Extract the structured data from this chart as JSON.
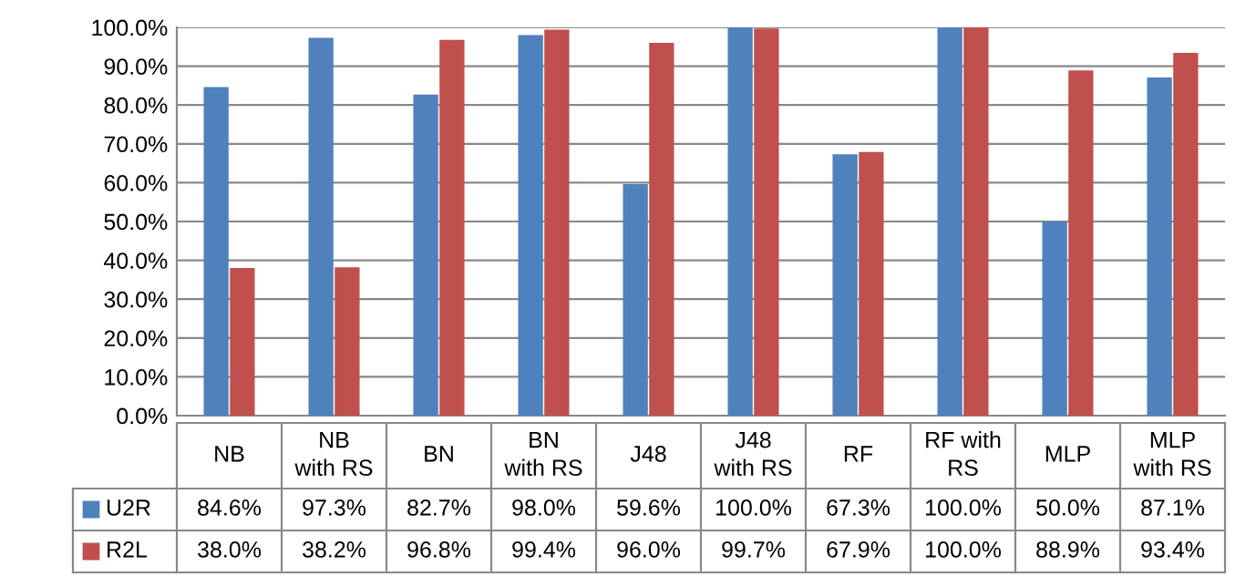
{
  "chart_data": {
    "type": "bar",
    "categories": [
      "NB",
      "NB\nwith RS",
      "BN",
      "BN\nwith RS",
      "J48",
      "J48\nwith RS",
      "RF",
      "RF with\nRS",
      "MLP",
      "MLP\nwith RS"
    ],
    "series": [
      {
        "name": "U2R",
        "color": "#4f81bd",
        "values": [
          84.6,
          97.3,
          82.7,
          98.0,
          59.6,
          100.0,
          67.3,
          100.0,
          50.0,
          87.1
        ],
        "value_labels": [
          "84.6%",
          "97.3%",
          "82.7%",
          "98.0%",
          "59.6%",
          "100.0%",
          "67.3%",
          "100.0%",
          "50.0%",
          "87.1%"
        ]
      },
      {
        "name": "R2L",
        "color": "#c0504d",
        "values": [
          38.0,
          38.2,
          96.8,
          99.4,
          96.0,
          99.7,
          67.9,
          100.0,
          88.9,
          93.4
        ],
        "value_labels": [
          "38.0%",
          "38.2%",
          "96.8%",
          "99.4%",
          "96.0%",
          "99.7%",
          "67.9%",
          "100.0%",
          "88.9%",
          "93.4%"
        ]
      }
    ],
    "ylim": [
      0,
      100
    ],
    "yticks": [
      {
        "value": 0,
        "label": "0.0%"
      },
      {
        "value": 10,
        "label": "10.0%"
      },
      {
        "value": 20,
        "label": "20.0%"
      },
      {
        "value": 30,
        "label": "30.0%"
      },
      {
        "value": 40,
        "label": "40.0%"
      },
      {
        "value": 50,
        "label": "50.0%"
      },
      {
        "value": 60,
        "label": "60.0%"
      },
      {
        "value": 70,
        "label": "70.0%"
      },
      {
        "value": 80,
        "label": "80.0%"
      },
      {
        "value": 90,
        "label": "90.0%"
      },
      {
        "value": 100,
        "label": "100.0%"
      }
    ],
    "grid": "y",
    "legend": "bottom"
  }
}
